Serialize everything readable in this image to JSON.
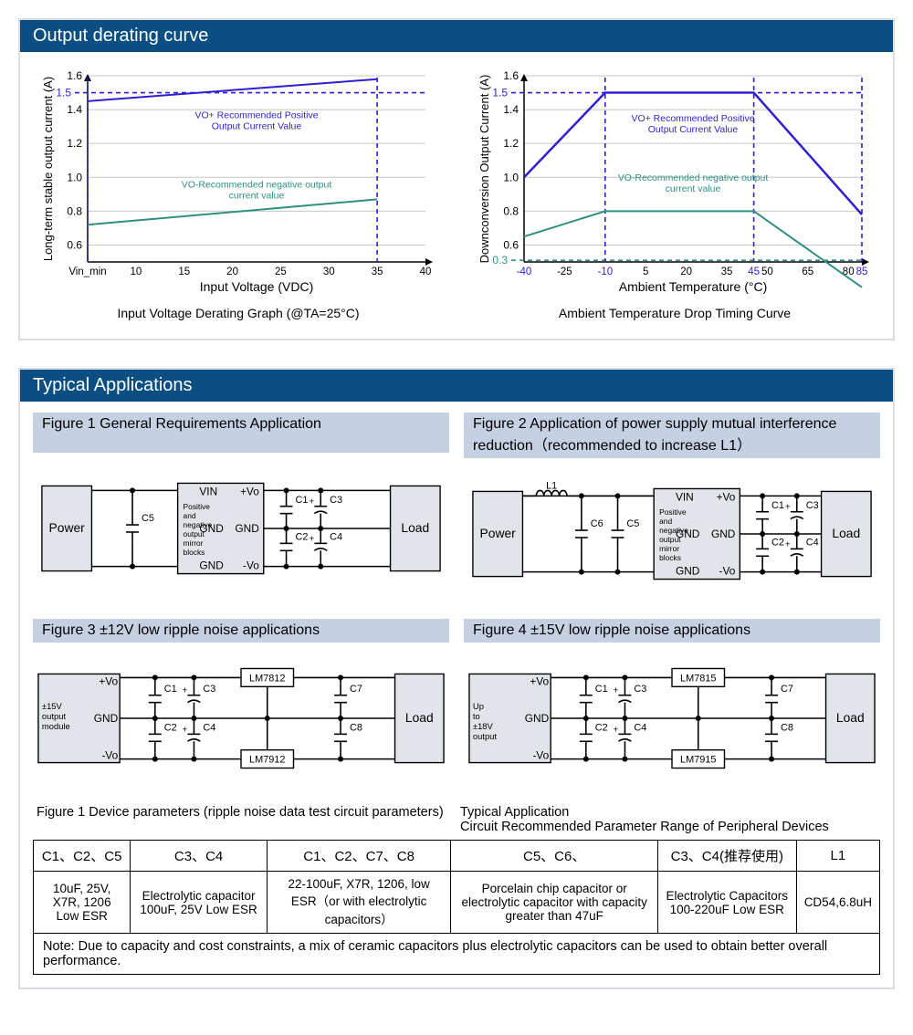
{
  "section1": {
    "title": "Output derating curve",
    "chart1": {
      "xlabel": "Input Voltage (VDC)",
      "ylabel": "Long-term stable output current (A)",
      "caption": "Input Voltage Derating Graph (@TA=25°C)",
      "xticks": [
        "Vin_min",
        "10",
        "15",
        "20",
        "25",
        "30",
        "35",
        "40"
      ],
      "yticks": [
        "0.6",
        "0.8",
        "1.0",
        "1.2",
        "1.4",
        "1.6"
      ],
      "ymin": 0.5,
      "ymax": 1.6,
      "xPositions": [
        0,
        1,
        2,
        3,
        4,
        5,
        6,
        7
      ],
      "dashY": 1.5,
      "lines": [
        {
          "color": "#2f1fd1",
          "width": 2,
          "pts": [
            [
              0,
              1.45
            ],
            [
              6,
              1.58
            ]
          ],
          "label": "VO+ Recommended Positive Output Current Value",
          "label_y": 1.35
        },
        {
          "color": "#2f8f82",
          "width": 2,
          "pts": [
            [
              0,
              0.72
            ],
            [
              6,
              0.87
            ]
          ],
          "label": "VO-Recommended negative output current value",
          "label_y": 0.94
        }
      ],
      "vdash_x": [
        0,
        6
      ],
      "axis_color": "#000",
      "grid_color": "#c6c6c6",
      "dash_color": "#2f1fd1",
      "label_fontsize": 10.5
    },
    "chart2": {
      "xlabel": "Ambient Temperature (°C)",
      "ylabel": "Downconversion Output Current (A)",
      "caption": "Ambient Temperature Drop Timing Curve",
      "xticks": [
        "-40",
        "-25",
        "-10",
        "5",
        "20",
        "35",
        "45",
        "50",
        "65",
        "80",
        "85"
      ],
      "xtickvals": [
        -40,
        -25,
        -10,
        5,
        20,
        35,
        45,
        50,
        65,
        80,
        85
      ],
      "yticks": [
        "0.6",
        "0.8",
        "1.0",
        "1.2",
        "1.4",
        "1.6"
      ],
      "ymin": 0.5,
      "ymax": 1.6,
      "dashY1": 1.5,
      "dashY2": 0.3,
      "lines": [
        {
          "color": "#2f1fd1",
          "width": 2.5,
          "pts": [
            [
              -40,
              1.0
            ],
            [
              -10,
              1.5
            ],
            [
              45,
              1.5
            ],
            [
              85,
              0.78
            ]
          ],
          "label": "VO+ Recommended Positive Output Current Value",
          "label_y": 1.33
        },
        {
          "color": "#2f8f82",
          "width": 2,
          "pts": [
            [
              -40,
              0.65
            ],
            [
              -10,
              0.8
            ],
            [
              45,
              0.8
            ],
            [
              85,
              0.35
            ]
          ],
          "label": "VO-Recommended negative output current value",
          "label_y": 0.98
        }
      ],
      "vdash_x": [
        -10,
        45,
        85
      ],
      "axis_color": "#000",
      "grid_color": "#c6c6c6",
      "dash_color": "#2f1fd1",
      "label_fontsize": 10.5,
      "special_tick_color": "#2f1fd1"
    }
  },
  "section2": {
    "title": "Typical Applications",
    "figs": [
      {
        "title": "Figure 1 General Requirements Application"
      },
      {
        "title": "Figure 2 Application of power supply mutual interference reduction（recommended to increase L1）"
      },
      {
        "title": "Figure 3 ±12V low ripple noise applications"
      },
      {
        "title": "Figure 4 ±15V low ripple noise applications"
      }
    ],
    "table_title_left": "Figure 1 Device parameters (ripple noise data test circuit parameters)",
    "table_title_right_1": "Typical Application",
    "table_title_right_2": "Circuit Recommended Parameter Range of Peripheral Devices",
    "cols": [
      "C1、C2、C5",
      "C3、C4",
      "C1、C2、C7、C8",
      "C5、C6、",
      "C3、C4(推荐使用)",
      "L1"
    ],
    "row": [
      "10uF, 25V, X7R, 1206 Low ESR",
      "Electrolytic capacitor 100uF, 25V Low ESR",
      "22-100uF, X7R, 1206, low ESR（or with electrolytic capacitors）",
      "Porcelain chip capacitor or electrolytic capacitor with capacity greater than 47uF",
      "Electrolytic Capacitors 100-220uF Low ESR",
      "CD54,6.8uH"
    ],
    "note": "Note: Due to capacity and cost constraints, a mix of ceramic capacitors plus electrolytic capacitors can be used to obtain better overall performance.",
    "circ_labels": {
      "power": "Power",
      "load": "Load",
      "vin": "VIN",
      "gnd": "GND",
      "pvo": "+Vo",
      "nvo": "-Vo",
      "block_text": "Positive and negative output mirror blocks",
      "mod15": "±15V output module",
      "upto18": "Up to ±18V output",
      "C1": "C1",
      "C2": "C2",
      "C3": "C3",
      "C4": "C4",
      "C5": "C5",
      "C6": "C6",
      "C7": "C7",
      "C8": "C8",
      "L1": "L1",
      "LM7812": "LM7812",
      "LM7912": "LM7912",
      "LM7815": "LM7815",
      "LM7915": "LM7915"
    },
    "circ_colors": {
      "box_fill": "#e1e4e9",
      "stroke": "#000",
      "wire": "#000"
    }
  }
}
